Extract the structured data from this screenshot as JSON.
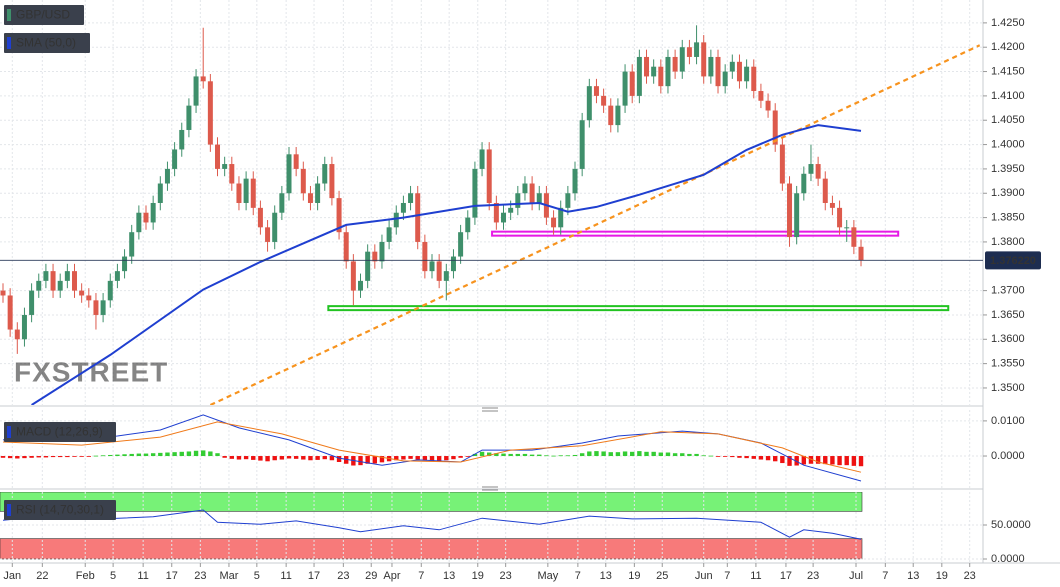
{
  "chart_data": {
    "type": "candlestick",
    "title": "GBP/USD",
    "colors": {
      "up": "#3f8f6b",
      "down": "#dd5a4c"
    },
    "grid": true,
    "xlim": [
      -0.42,
      137.06
    ],
    "xticks": [
      {
        "value": 1.3,
        "label": "Jan"
      },
      {
        "value": 5.5,
        "label": "22"
      },
      {
        "value": 11.5,
        "label": "Feb"
      },
      {
        "value": 15.4,
        "label": "5"
      },
      {
        "value": 19.6,
        "label": "11"
      },
      {
        "value": 23.6,
        "label": "17"
      },
      {
        "value": 27.6,
        "label": "23"
      },
      {
        "value": 31.6,
        "label": "Mar"
      },
      {
        "value": 35.5,
        "label": "5"
      },
      {
        "value": 39.6,
        "label": "11"
      },
      {
        "value": 43.5,
        "label": "17"
      },
      {
        "value": 47.6,
        "label": "23"
      },
      {
        "value": 51.5,
        "label": "29"
      },
      {
        "value": 54.4,
        "label": "Apr"
      },
      {
        "value": 58.5,
        "label": "7"
      },
      {
        "value": 62.4,
        "label": "13"
      },
      {
        "value": 66.4,
        "label": "19"
      },
      {
        "value": 70.3,
        "label": "23"
      },
      {
        "value": 76.2,
        "label": "May"
      },
      {
        "value": 80.4,
        "label": "7"
      },
      {
        "value": 84.3,
        "label": "13"
      },
      {
        "value": 88.3,
        "label": "19"
      },
      {
        "value": 92.2,
        "label": "25"
      },
      {
        "value": 98.0,
        "label": "Jun"
      },
      {
        "value": 101.3,
        "label": "7"
      },
      {
        "value": 105.3,
        "label": "11"
      },
      {
        "value": 109.5,
        "label": "17"
      },
      {
        "value": 113.3,
        "label": "23"
      },
      {
        "value": 119.3,
        "label": "Jul"
      },
      {
        "value": 123.4,
        "label": "7"
      },
      {
        "value": 127.3,
        "label": "13"
      },
      {
        "value": 131.3,
        "label": "19"
      },
      {
        "value": 135.2,
        "label": "23"
      }
    ],
    "ylim": [
      1.3465,
      1.4297
    ],
    "yticks": [
      {
        "value": 1.425,
        "label": "1.4250"
      },
      {
        "value": 1.42,
        "label": "1.4200"
      },
      {
        "value": 1.415,
        "label": "1.4150"
      },
      {
        "value": 1.41,
        "label": "1.4100"
      },
      {
        "value": 1.405,
        "label": "1.4050"
      },
      {
        "value": 1.4,
        "label": "1.4000"
      },
      {
        "value": 1.395,
        "label": "1.3950"
      },
      {
        "value": 1.39,
        "label": "1.3900"
      },
      {
        "value": 1.385,
        "label": "1.3850"
      },
      {
        "value": 1.38,
        "label": "1.3800"
      },
      {
        "value": 1.37,
        "label": "1.3700"
      },
      {
        "value": 1.365,
        "label": "1.3650"
      },
      {
        "value": 1.36,
        "label": "1.3600"
      },
      {
        "value": 1.355,
        "label": "1.3550"
      },
      {
        "value": 1.35,
        "label": "1.3500"
      }
    ],
    "last_price_label": "1.376220",
    "watermark": "FXSTREET",
    "candles": [
      [
        1.37,
        1.3715,
        1.3675,
        1.369
      ],
      [
        1.369,
        1.3705,
        1.3605,
        1.362
      ],
      [
        1.362,
        1.3635,
        1.357,
        1.36
      ],
      [
        1.36,
        1.3665,
        1.3585,
        1.365
      ],
      [
        1.365,
        1.3715,
        1.3635,
        1.37
      ],
      [
        1.37,
        1.3735,
        1.3685,
        1.372
      ],
      [
        1.372,
        1.3755,
        1.3705,
        1.374
      ],
      [
        1.374,
        1.3755,
        1.3685,
        1.37
      ],
      [
        1.37,
        1.3735,
        1.3685,
        1.372
      ],
      [
        1.372,
        1.3755,
        1.3705,
        1.374
      ],
      [
        1.374,
        1.3755,
        1.3685,
        1.37
      ],
      [
        1.37,
        1.3715,
        1.3675,
        1.369
      ],
      [
        1.369,
        1.3705,
        1.3665,
        1.368
      ],
      [
        1.368,
        1.3695,
        1.362,
        1.365
      ],
      [
        1.365,
        1.3695,
        1.3635,
        1.368
      ],
      [
        1.368,
        1.3735,
        1.3665,
        1.372
      ],
      [
        1.372,
        1.3755,
        1.3705,
        1.374
      ],
      [
        1.374,
        1.3785,
        1.3725,
        1.377
      ],
      [
        1.377,
        1.3835,
        1.3755,
        1.382
      ],
      [
        1.382,
        1.3875,
        1.3805,
        1.386
      ],
      [
        1.386,
        1.3875,
        1.3825,
        1.384
      ],
      [
        1.384,
        1.3895,
        1.3825,
        1.388
      ],
      [
        1.388,
        1.3935,
        1.3865,
        1.392
      ],
      [
        1.392,
        1.3965,
        1.3905,
        1.395
      ],
      [
        1.395,
        1.4005,
        1.3935,
        1.399
      ],
      [
        1.399,
        1.4045,
        1.3975,
        1.403
      ],
      [
        1.403,
        1.4095,
        1.4015,
        1.408
      ],
      [
        1.408,
        1.4155,
        1.4065,
        1.414
      ],
      [
        1.414,
        1.424,
        1.4115,
        1.413
      ],
      [
        1.413,
        1.4145,
        1.3985,
        1.4
      ],
      [
        1.4,
        1.4015,
        1.3935,
        1.395
      ],
      [
        1.395,
        1.3975,
        1.3935,
        1.396
      ],
      [
        1.396,
        1.3975,
        1.3905,
        1.392
      ],
      [
        1.392,
        1.3935,
        1.3865,
        1.388
      ],
      [
        1.388,
        1.3945,
        1.3865,
        1.393
      ],
      [
        1.393,
        1.3945,
        1.3855,
        1.387
      ],
      [
        1.387,
        1.3885,
        1.3815,
        1.383
      ],
      [
        1.383,
        1.3845,
        1.378,
        1.38
      ],
      [
        1.38,
        1.3875,
        1.3785,
        1.386
      ],
      [
        1.386,
        1.3915,
        1.3845,
        1.39
      ],
      [
        1.39,
        1.3995,
        1.3885,
        1.398
      ],
      [
        1.398,
        1.3995,
        1.3935,
        1.395
      ],
      [
        1.395,
        1.3965,
        1.3885,
        1.39
      ],
      [
        1.39,
        1.3915,
        1.3865,
        1.388
      ],
      [
        1.388,
        1.3935,
        1.3865,
        1.392
      ],
      [
        1.392,
        1.3975,
        1.3905,
        1.396
      ],
      [
        1.396,
        1.3975,
        1.3875,
        1.389
      ],
      [
        1.389,
        1.3905,
        1.3805,
        1.382
      ],
      [
        1.382,
        1.3835,
        1.3745,
        1.376
      ],
      [
        1.376,
        1.3775,
        1.367,
        1.37
      ],
      [
        1.37,
        1.3735,
        1.3685,
        1.372
      ],
      [
        1.372,
        1.3795,
        1.3705,
        1.378
      ],
      [
        1.378,
        1.3795,
        1.3745,
        1.376
      ],
      [
        1.376,
        1.3815,
        1.3745,
        1.38
      ],
      [
        1.38,
        1.3845,
        1.3785,
        1.383
      ],
      [
        1.383,
        1.3875,
        1.3815,
        1.386
      ],
      [
        1.386,
        1.3895,
        1.3845,
        1.388
      ],
      [
        1.388,
        1.3915,
        1.3865,
        1.39
      ],
      [
        1.39,
        1.3915,
        1.3785,
        1.38
      ],
      [
        1.38,
        1.3815,
        1.3725,
        1.374
      ],
      [
        1.374,
        1.3775,
        1.3725,
        1.376
      ],
      [
        1.376,
        1.3775,
        1.3705,
        1.372
      ],
      [
        1.372,
        1.3755,
        1.368,
        1.374
      ],
      [
        1.374,
        1.3785,
        1.3725,
        1.377
      ],
      [
        1.377,
        1.3835,
        1.3755,
        1.382
      ],
      [
        1.382,
        1.3865,
        1.3805,
        1.385
      ],
      [
        1.385,
        1.3965,
        1.3835,
        1.395
      ],
      [
        1.395,
        1.4005,
        1.3935,
        1.399
      ],
      [
        1.399,
        1.4005,
        1.3865,
        1.388
      ],
      [
        1.388,
        1.3895,
        1.3825,
        1.384
      ],
      [
        1.384,
        1.3875,
        1.3825,
        1.386
      ],
      [
        1.386,
        1.3885,
        1.3845,
        1.387
      ],
      [
        1.387,
        1.3915,
        1.3855,
        1.39
      ],
      [
        1.39,
        1.3935,
        1.3885,
        1.392
      ],
      [
        1.392,
        1.3935,
        1.3865,
        1.388
      ],
      [
        1.388,
        1.3915,
        1.3865,
        1.39
      ],
      [
        1.39,
        1.3915,
        1.3835,
        1.385
      ],
      [
        1.385,
        1.3865,
        1.3815,
        1.383
      ],
      [
        1.383,
        1.3885,
        1.3815,
        1.387
      ],
      [
        1.387,
        1.3915,
        1.3855,
        1.39
      ],
      [
        1.39,
        1.3965,
        1.3885,
        1.395
      ],
      [
        1.395,
        1.4065,
        1.3935,
        1.405
      ],
      [
        1.405,
        1.4135,
        1.4035,
        1.412
      ],
      [
        1.412,
        1.4135,
        1.4085,
        1.41
      ],
      [
        1.41,
        1.4115,
        1.4065,
        1.408
      ],
      [
        1.408,
        1.4095,
        1.4025,
        1.404
      ],
      [
        1.404,
        1.4095,
        1.4025,
        1.408
      ],
      [
        1.408,
        1.4165,
        1.4065,
        1.415
      ],
      [
        1.415,
        1.4165,
        1.4085,
        1.41
      ],
      [
        1.41,
        1.4195,
        1.4085,
        1.418
      ],
      [
        1.418,
        1.4195,
        1.4125,
        1.414
      ],
      [
        1.414,
        1.4175,
        1.4125,
        1.416
      ],
      [
        1.416,
        1.4175,
        1.4105,
        1.412
      ],
      [
        1.412,
        1.4195,
        1.4105,
        1.418
      ],
      [
        1.418,
        1.4195,
        1.4135,
        1.415
      ],
      [
        1.415,
        1.4215,
        1.4135,
        1.42
      ],
      [
        1.42,
        1.4215,
        1.4165,
        1.418
      ],
      [
        1.418,
        1.4245,
        1.4165,
        1.421
      ],
      [
        1.421,
        1.4225,
        1.4125,
        1.414
      ],
      [
        1.414,
        1.4195,
        1.4125,
        1.418
      ],
      [
        1.418,
        1.4195,
        1.4105,
        1.412
      ],
      [
        1.412,
        1.4165,
        1.4105,
        1.415
      ],
      [
        1.415,
        1.4185,
        1.4135,
        1.417
      ],
      [
        1.417,
        1.4185,
        1.4115,
        1.413
      ],
      [
        1.413,
        1.4175,
        1.4115,
        1.416
      ],
      [
        1.416,
        1.4175,
        1.4095,
        1.411
      ],
      [
        1.411,
        1.4125,
        1.4075,
        1.409
      ],
      [
        1.409,
        1.4105,
        1.4055,
        1.407
      ],
      [
        1.407,
        1.4085,
        1.3985,
        1.4
      ],
      [
        1.4,
        1.4015,
        1.3905,
        1.392
      ],
      [
        1.392,
        1.3935,
        1.379,
        1.381
      ],
      [
        1.381,
        1.3915,
        1.3795,
        1.39
      ],
      [
        1.39,
        1.3955,
        1.3885,
        1.394
      ],
      [
        1.394,
        1.4,
        1.3925,
        1.396
      ],
      [
        1.396,
        1.3975,
        1.3915,
        1.393
      ],
      [
        1.393,
        1.3945,
        1.3865,
        1.388
      ],
      [
        1.388,
        1.3895,
        1.3855,
        1.387
      ],
      [
        1.387,
        1.3885,
        1.3815,
        1.383
      ],
      [
        1.383,
        1.3845,
        1.38,
        1.383
      ],
      [
        1.383,
        1.3845,
        1.3775,
        1.379
      ],
      [
        1.379,
        1.3805,
        1.375,
        1.37622
      ]
    ],
    "sma": {
      "name": "SMA (50,0)",
      "color": "#1f3fd0",
      "x": [
        4,
        15,
        28,
        36,
        48,
        56,
        66,
        75,
        79,
        83,
        89,
        98,
        104,
        109,
        114,
        120
      ],
      "values": [
        1.3465,
        1.3568,
        1.3702,
        1.3759,
        1.3835,
        1.385,
        1.3874,
        1.388,
        1.3862,
        1.3872,
        1.3897,
        1.3938,
        1.3989,
        1.402,
        1.404,
        1.4028
      ]
    },
    "trendline": {
      "color": "#f7931e",
      "x": [
        29,
        136.6
      ],
      "values": [
        1.3465,
        1.4204
      ]
    },
    "levels": [
      {
        "color": "#e619e6",
        "x": [
          68.4,
          125.2
        ],
        "value": 1.3817
      },
      {
        "color": "#22c322",
        "x": [
          45.5,
          132.2
        ],
        "value": 1.3664
      }
    ],
    "macd": {
      "name": "MACD (12,26,9)",
      "ylim": [
        -0.0091,
        0.0131
      ],
      "yticks": [
        {
          "value": 0.01,
          "label": "0.0100"
        },
        {
          "value": 0,
          "label": "0.0000"
        }
      ],
      "up_color": "#33cc33",
      "down_color": "#ee1111",
      "histogram": [
        -0.0005,
        -0.0006,
        -0.0007,
        -0.0006,
        -0.0005,
        -0.0004,
        -0.0004,
        -0.0003,
        -0.0003,
        -0.0003,
        -0.0002,
        -0.0002,
        -0.0001,
        0.0001,
        0.0002,
        0.0003,
        0.0004,
        0.0005,
        0.0006,
        0.0007,
        0.0007,
        0.0008,
        0.0009,
        0.001,
        0.0011,
        0.0012,
        0.0013,
        0.0015,
        0.0016,
        0.0013,
        0.0008,
        -0.0005,
        -0.0008,
        -0.001,
        -0.0009,
        -0.0011,
        -0.0013,
        -0.0015,
        -0.0012,
        -0.001,
        -0.0007,
        -0.0008,
        -0.001,
        -0.0012,
        -0.0011,
        -0.0009,
        -0.0012,
        -0.0017,
        -0.0022,
        -0.0027,
        -0.0026,
        -0.0022,
        -0.0021,
        -0.0018,
        -0.0015,
        -0.0012,
        -0.001,
        -0.0008,
        -0.001,
        -0.0013,
        -0.0013,
        -0.0014,
        -0.0012,
        -0.0009,
        -0.0005,
        -0.0002,
        0.0006,
        0.0012,
        0.001,
        0.0008,
        0.0007,
        0.0006,
        0.0006,
        0.0006,
        0.0004,
        0.0004,
        0.0002,
        0.0001,
        0.0002,
        0.0002,
        0.0003,
        0.0008,
        0.0013,
        0.0014,
        0.0013,
        0.0011,
        0.0011,
        0.0013,
        0.0012,
        0.0014,
        0.0012,
        0.0012,
        0.001,
        0.001,
        0.0008,
        0.0008,
        0.0006,
        0.0006,
        0.0002,
        0.0001,
        -0.0001,
        -0.0002,
        -0.0003,
        -0.0005,
        -0.0006,
        -0.0008,
        -0.001,
        -0.0012,
        -0.0015,
        -0.002,
        -0.0028,
        -0.0027,
        -0.0024,
        -0.0022,
        -0.0022,
        -0.0023,
        -0.0024,
        -0.0026,
        -0.0026,
        -0.0028,
        -0.0029
      ],
      "macd_line": {
        "color": "#1f3fd0",
        "x": [
          0,
          5,
          11,
          16,
          22,
          28,
          33,
          40,
          47,
          53,
          58,
          64,
          67,
          74,
          81,
          86,
          95,
          100,
          106,
          112,
          120
        ],
        "values": [
          0.0046,
          0.0054,
          0.0046,
          0.0057,
          0.0074,
          0.0117,
          0.008,
          0.0046,
          -0.0006,
          -0.0026,
          -0.0011,
          -0.0017,
          0.0017,
          0.0017,
          0.0037,
          0.0057,
          0.0071,
          0.0063,
          0.0037,
          -0.0026,
          -0.0071
        ]
      },
      "signal_line": {
        "color": "#f07a1a",
        "x": [
          0,
          11,
          22,
          30,
          39,
          47,
          56,
          64,
          71,
          81,
          92,
          100,
          109,
          114,
          120
        ],
        "values": [
          0.004,
          0.0031,
          0.0054,
          0.0097,
          0.0063,
          0.0017,
          -0.0014,
          -0.0017,
          0.0017,
          0.0029,
          0.0069,
          0.0063,
          0.0023,
          -0.0017,
          -0.0046
        ]
      }
    },
    "rsi": {
      "name": "RSI (14,70,30,1)",
      "color": "#1f3fd0",
      "ylim": [
        -4.4,
        98.5
      ],
      "yticks": [
        {
          "value": 50,
          "label": "50.0000"
        },
        {
          "value": 0,
          "label": "0.0000"
        }
      ],
      "overbought": 70,
      "oversold": 30,
      "overbought_color": "#77f277",
      "oversold_color": "#f77a7a",
      "x": [
        0,
        5,
        14,
        21,
        28,
        30,
        36,
        41,
        47,
        50,
        56,
        61,
        67,
        75,
        82,
        88,
        97,
        106,
        110,
        112,
        116,
        120
      ],
      "values": [
        57,
        62,
        59,
        62,
        72,
        54,
        51,
        56,
        46,
        40,
        49,
        43,
        60,
        51,
        63,
        59,
        60,
        54,
        32,
        43,
        38,
        29
      ]
    }
  }
}
